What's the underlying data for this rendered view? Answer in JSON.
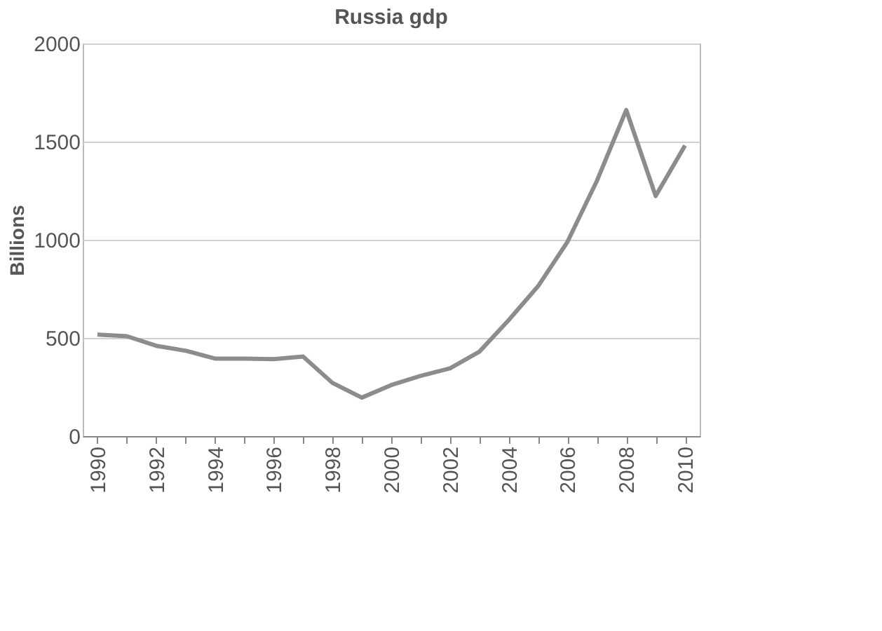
{
  "chart_data": {
    "type": "line",
    "title": "Russia gdp",
    "ylabel": "Billions",
    "categories": [
      "1990",
      null,
      "1992",
      null,
      "1994",
      null,
      "1996",
      null,
      "1998",
      null,
      "2000",
      null,
      "2002",
      null,
      "2004",
      null,
      "2006",
      null,
      "2008",
      null,
      "2010"
    ],
    "series": [
      {
        "color": "#8c8c8c",
        "values": [
          517,
          509,
          460,
          435,
          395,
          395,
          392,
          405,
          271,
          196,
          260,
          307,
          345,
          430,
          591,
          764,
          990,
          1300,
          1661,
          1223,
          1480
        ]
      }
    ],
    "ylim": [
      0,
      2000
    ],
    "yticks": [
      0,
      500,
      1000,
      1500,
      2000
    ],
    "grid": "y",
    "legend": false,
    "marker": "none",
    "line_style": "solid"
  }
}
